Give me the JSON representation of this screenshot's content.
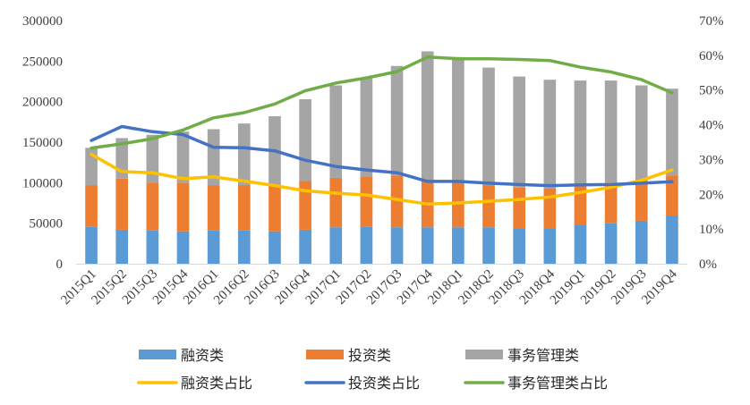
{
  "chart_data": {
    "type": "bar",
    "stacked": true,
    "categories": [
      "2015Q1",
      "2015Q2",
      "2015Q3",
      "2015Q4",
      "2016Q1",
      "2016Q2",
      "2016Q3",
      "2016Q4",
      "2017Q1",
      "2017Q2",
      "2017Q3",
      "2017Q4",
      "2018Q1",
      "2018Q2",
      "2018Q3",
      "2018Q4",
      "2019Q1",
      "2019Q2",
      "2019Q3",
      "2019Q4"
    ],
    "series": [
      {
        "name": "融资类",
        "kind": "bar",
        "axis": "left",
        "color": "#5B9BD5",
        "values": [
          46000,
          42000,
          41000,
          40000,
          41000,
          41000,
          40000,
          42000,
          45000,
          46000,
          45000,
          45000,
          45000,
          45000,
          43000,
          44000,
          48000,
          50000,
          53000,
          59000
        ]
      },
      {
        "name": "投资类",
        "kind": "bar",
        "axis": "left",
        "color": "#ED7D31",
        "values": [
          51000,
          63000,
          59000,
          60000,
          56000,
          56000,
          58000,
          60000,
          61000,
          61000,
          64000,
          58000,
          57000,
          52000,
          51000,
          49000,
          50000,
          50000,
          49000,
          50000
        ]
      },
      {
        "name": "事务管理类",
        "kind": "bar",
        "axis": "left",
        "color": "#A5A5A5",
        "values": [
          46000,
          50000,
          59000,
          63000,
          69000,
          76000,
          84000,
          101000,
          114000,
          123000,
          135000,
          159000,
          153000,
          145000,
          137000,
          134000,
          128000,
          126000,
          118000,
          107000
        ]
      },
      {
        "name": "融资类占比",
        "kind": "line",
        "axis": "right",
        "color": "#FFC000",
        "values": [
          0.315,
          0.265,
          0.262,
          0.245,
          0.25,
          0.238,
          0.225,
          0.21,
          0.203,
          0.198,
          0.185,
          0.172,
          0.175,
          0.18,
          0.185,
          0.192,
          0.205,
          0.22,
          0.24,
          0.27
        ]
      },
      {
        "name": "投资类占比",
        "kind": "line",
        "axis": "right",
        "color": "#4472C4",
        "values": [
          0.355,
          0.395,
          0.38,
          0.372,
          0.335,
          0.334,
          0.325,
          0.298,
          0.28,
          0.27,
          0.262,
          0.237,
          0.237,
          0.232,
          0.228,
          0.225,
          0.227,
          0.228,
          0.232,
          0.236
        ]
      },
      {
        "name": "事务管理类占比",
        "kind": "line",
        "axis": "right",
        "color": "#70AD47",
        "values": [
          0.333,
          0.345,
          0.36,
          0.385,
          0.42,
          0.435,
          0.46,
          0.498,
          0.52,
          0.535,
          0.553,
          0.595,
          0.59,
          0.59,
          0.588,
          0.585,
          0.566,
          0.552,
          0.53,
          0.492
        ]
      }
    ],
    "y_left": {
      "min": 0,
      "max": 300000,
      "ticks": [
        "0",
        "50000",
        "100000",
        "150000",
        "200000",
        "250000",
        "300000"
      ]
    },
    "y_right": {
      "min": 0,
      "max": 0.7,
      "ticks": [
        "0%",
        "10%",
        "20%",
        "30%",
        "40%",
        "50%",
        "60%",
        "70%"
      ]
    },
    "title": "",
    "xlabel": "",
    "ylabel": "",
    "grid": false,
    "legend_position": "bottom"
  }
}
